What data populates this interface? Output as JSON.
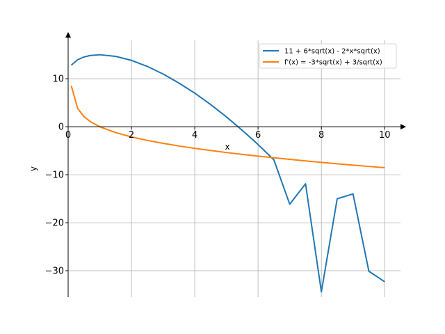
{
  "chart_data": {
    "type": "line",
    "title": "",
    "xlabel": "x",
    "ylabel": "y",
    "xlim": [
      0,
      10.5
    ],
    "ylim": [
      -35.5,
      18
    ],
    "grid": true,
    "legend_position": "top-right",
    "xticks": [
      0,
      2,
      4,
      6,
      8,
      10
    ],
    "xtick_labels": [
      "0",
      "2",
      "4",
      "6",
      "8",
      "10"
    ],
    "yticks": [
      -30,
      -20,
      -10,
      0,
      10
    ],
    "ytick_labels": [
      "−30",
      "−20",
      "−10",
      "0",
      "10"
    ],
    "series": [
      {
        "name": "11 + 6*sqrt(x) - 2*x*sqrt(x)",
        "color": "#1f77b4",
        "x": [
          0.1,
          0.3,
          0.5,
          0.7,
          1.0,
          1.5,
          2.0,
          2.5,
          3.0,
          3.5,
          4.0,
          4.5,
          5.0,
          5.5,
          6.0,
          6.5,
          7.0,
          7.5,
          8.0,
          8.5,
          9.0,
          9.5,
          10.0
        ],
        "values": [
          12.83,
          13.96,
          14.54,
          14.85,
          15.0,
          14.67,
          13.83,
          12.58,
          10.99,
          9.1,
          7.0,
          4.64,
          2.06,
          -0.74,
          -3.7,
          -6.9,
          -16.14,
          -11.89,
          -34.4,
          -15.0,
          -14.0,
          -30.1,
          -32.3
        ]
      },
      {
        "name": "f'(x) = -3*sqrt(x) + 3/sqrt(x)",
        "color": "#ff7f0e",
        "x": [
          0.1,
          0.3,
          0.5,
          0.7,
          1.0,
          1.5,
          2.0,
          2.5,
          3.0,
          3.5,
          4.0,
          4.5,
          5.0,
          5.5,
          6.0,
          6.5,
          7.0,
          7.5,
          8.0,
          8.5,
          9.0,
          9.5,
          10.0
        ],
        "values": [
          8.54,
          3.83,
          2.12,
          1.08,
          0.0,
          -1.22,
          -2.12,
          -2.85,
          -3.46,
          -4.01,
          -4.5,
          -4.95,
          -5.37,
          -5.76,
          -6.12,
          -6.47,
          -6.8,
          -7.12,
          -7.42,
          -7.72,
          -8.0,
          -8.27,
          -8.54
        ]
      }
    ]
  }
}
